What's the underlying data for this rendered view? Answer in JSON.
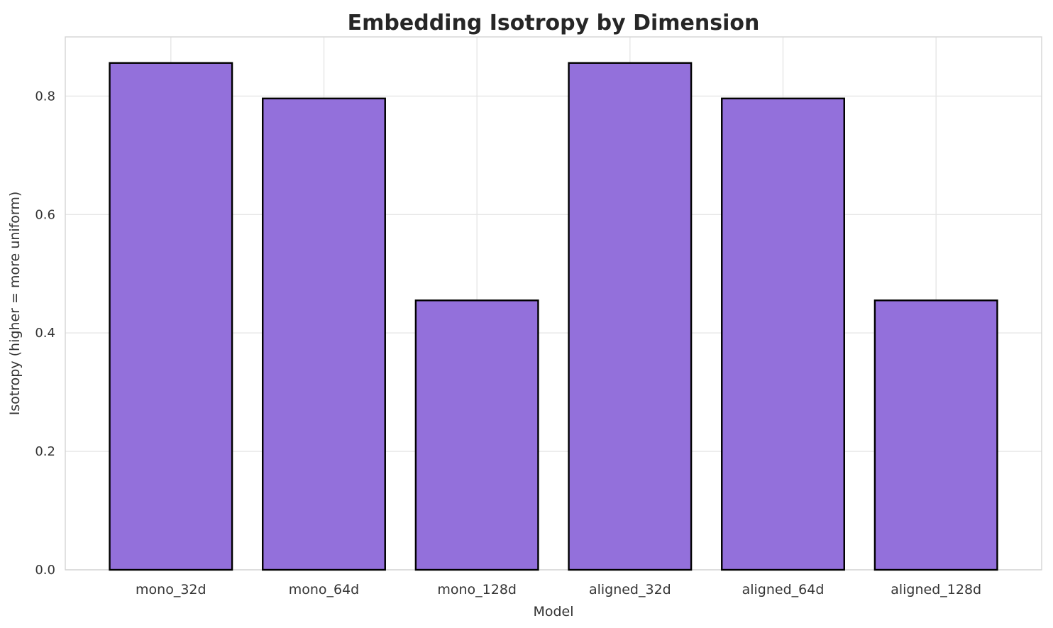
{
  "chart_data": {
    "type": "bar",
    "title": "Embedding Isotropy by Dimension",
    "xlabel": "Model",
    "ylabel": "Isotropy (higher = more uniform)",
    "categories": [
      "mono_32d",
      "mono_64d",
      "mono_128d",
      "aligned_32d",
      "aligned_64d",
      "aligned_128d"
    ],
    "values": [
      0.856,
      0.796,
      0.455,
      0.856,
      0.796,
      0.455
    ],
    "ylim": [
      0,
      0.9
    ],
    "yticks": [
      0.0,
      0.2,
      0.4,
      0.6,
      0.8
    ],
    "grid": true,
    "legend": "none",
    "bar_color": "#9370db",
    "bar_edge_color": "#000000",
    "grid_color": "#e6e6e6",
    "spine_color": "#d4d4d4",
    "background_color": "#ffffff",
    "title_color": "#262626",
    "tick_color": "#333333"
  }
}
